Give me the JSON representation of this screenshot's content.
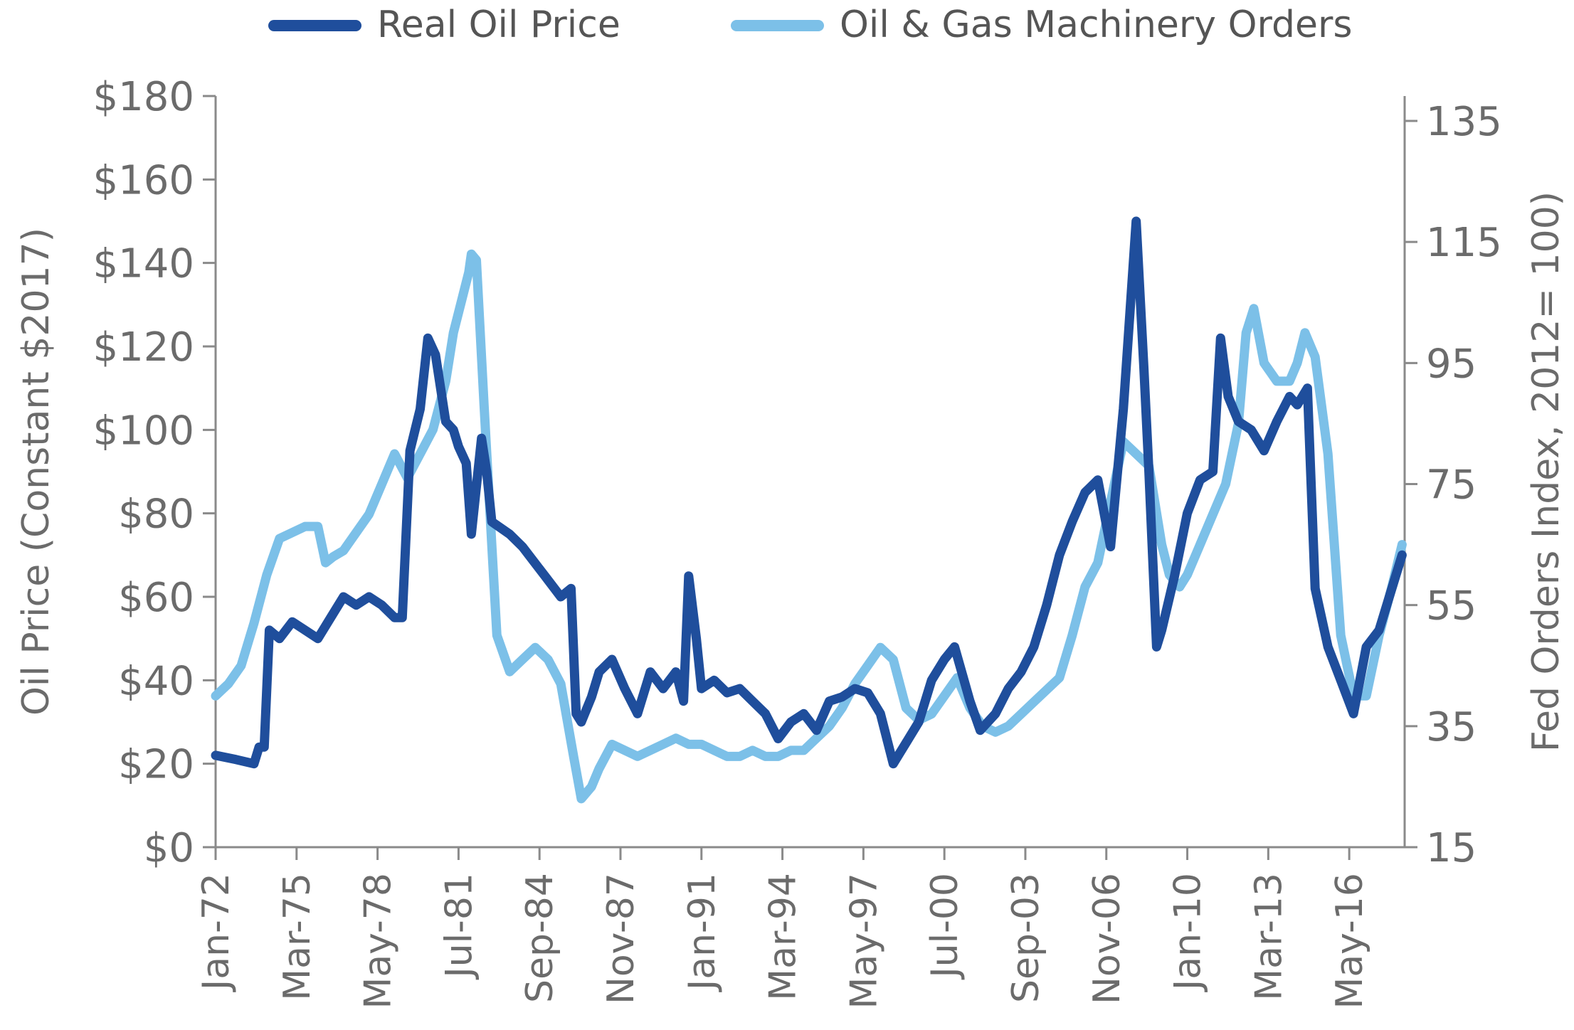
{
  "chart_data": {
    "type": "line",
    "legend": {
      "position": "top-center"
    },
    "grid": false,
    "x_tick_labels": [
      "Jan-72",
      "Mar-75",
      "May-78",
      "Jul-81",
      "Sep-84",
      "Nov-87",
      "Jan-91",
      "Mar-94",
      "May-97",
      "Jul-00",
      "Sep-03",
      "Nov-06",
      "Jan-10",
      "Mar-13",
      "May-16"
    ],
    "xlim": [
      1972.0,
      2018.5
    ],
    "y_left": {
      "label": "Oil Price (Constant $2017)",
      "ylim": [
        0,
        180
      ],
      "tick_labels": [
        "$0",
        "$20",
        "$40",
        "$60",
        "$80",
        "$100",
        "$120",
        "$140",
        "$160",
        "$180"
      ]
    },
    "y_right": {
      "label": "Fed Orders Index,  2012= 100)",
      "ylim": [
        15,
        140
      ],
      "tick_labels": [
        "15",
        "35",
        "55",
        "75",
        "95",
        "115",
        "135"
      ]
    },
    "series": [
      {
        "name": "Real Oil Price",
        "axis": "left",
        "color": "#1f4e9c",
        "x": [
          1972.0,
          1972.8,
          1973.5,
          1973.7,
          1973.9,
          1974.1,
          1974.5,
          1975.0,
          1975.5,
          1976.0,
          1976.5,
          1977.0,
          1977.5,
          1978.0,
          1978.5,
          1979.0,
          1979.3,
          1979.6,
          1980.0,
          1980.3,
          1980.6,
          1981.0,
          1981.3,
          1981.5,
          1981.8,
          1982.0,
          1982.4,
          1982.6,
          1982.8,
          1983.5,
          1984.0,
          1984.5,
          1985.0,
          1985.5,
          1985.9,
          1986.1,
          1986.3,
          1986.7,
          1987.0,
          1987.5,
          1988.0,
          1988.5,
          1989.0,
          1989.5,
          1990.0,
          1990.3,
          1990.5,
          1990.8,
          1991.0,
          1991.5,
          1992.0,
          1992.5,
          1993.0,
          1993.5,
          1994.0,
          1994.5,
          1995.0,
          1995.5,
          1996.0,
          1996.5,
          1997.0,
          1997.5,
          1998.0,
          1998.5,
          1999.0,
          1999.5,
          2000.0,
          2000.5,
          2000.9,
          2001.5,
          2001.9,
          2002.5,
          2003.0,
          2003.5,
          2004.0,
          2004.5,
          2005.0,
          2005.5,
          2006.0,
          2006.5,
          2007.0,
          2007.5,
          2008.0,
          2008.3,
          2008.5,
          2008.8,
          2009.0,
          2009.5,
          2010.0,
          2010.5,
          2011.0,
          2011.3,
          2011.6,
          2012.0,
          2012.5,
          2013.0,
          2013.5,
          2014.0,
          2014.3,
          2014.7,
          2015.0,
          2015.5,
          2016.0,
          2016.5,
          2017.0,
          2017.5,
          2018.0,
          2018.4
        ],
        "values": [
          22,
          21,
          20,
          24,
          24,
          52,
          50,
          54,
          52,
          50,
          55,
          60,
          58,
          60,
          58,
          55,
          55,
          95,
          105,
          122,
          118,
          102,
          100,
          96,
          92,
          75,
          98,
          90,
          78,
          75,
          72,
          68,
          64,
          60,
          62,
          32,
          30,
          36,
          42,
          45,
          38,
          32,
          42,
          38,
          42,
          35,
          65,
          50,
          38,
          40,
          37,
          38,
          35,
          32,
          26,
          30,
          32,
          28,
          35,
          36,
          38,
          37,
          32,
          20,
          25,
          30,
          40,
          45,
          48,
          35,
          28,
          32,
          38,
          42,
          48,
          58,
          70,
          78,
          85,
          88,
          72,
          105,
          150,
          115,
          90,
          48,
          52,
          65,
          80,
          88,
          90,
          122,
          108,
          102,
          100,
          95,
          102,
          108,
          106,
          110,
          62,
          48,
          40,
          32,
          48,
          52,
          62,
          70
        ]
      },
      {
        "name": "Oil & Gas Machinery Orders",
        "axis": "right",
        "color": "#7cc0e8",
        "x": [
          1972.0,
          1972.5,
          1973.0,
          1973.5,
          1974.0,
          1974.5,
          1975.0,
          1975.5,
          1976.0,
          1976.3,
          1976.6,
          1977.0,
          1977.5,
          1978.0,
          1978.5,
          1979.0,
          1979.5,
          1980.0,
          1980.5,
          1981.0,
          1981.3,
          1981.6,
          1981.9,
          1982.0,
          1982.2,
          1982.5,
          1982.8,
          1983.0,
          1983.5,
          1984.0,
          1984.5,
          1985.0,
          1985.5,
          1986.0,
          1986.3,
          1986.7,
          1987.0,
          1987.5,
          1988.0,
          1988.5,
          1989.0,
          1989.5,
          1990.0,
          1990.5,
          1991.0,
          1991.5,
          1992.0,
          1992.5,
          1993.0,
          1993.5,
          1994.0,
          1994.5,
          1995.0,
          1995.5,
          1996.0,
          1996.5,
          1997.0,
          1997.5,
          1998.0,
          1998.5,
          1999.0,
          1999.5,
          2000.0,
          2000.5,
          2001.0,
          2001.5,
          2002.0,
          2002.5,
          2003.0,
          2003.5,
          2004.0,
          2004.5,
          2005.0,
          2005.5,
          2006.0,
          2006.5,
          2007.0,
          2007.5,
          2008.0,
          2008.5,
          2009.0,
          2009.3,
          2009.7,
          2010.0,
          2010.5,
          2011.0,
          2011.5,
          2012.0,
          2012.3,
          2012.6,
          2013.0,
          2013.5,
          2014.0,
          2014.3,
          2014.6,
          2015.0,
          2015.5,
          2016.0,
          2016.5,
          2017.0,
          2017.5,
          2018.0,
          2018.4
        ],
        "values": [
          40,
          42,
          45,
          52,
          60,
          66,
          67,
          68,
          68,
          62,
          63,
          64,
          67,
          70,
          75,
          80,
          76,
          80,
          84,
          92,
          100,
          105,
          110,
          113,
          112,
          88,
          65,
          50,
          44,
          46,
          48,
          46,
          42,
          30,
          23,
          25,
          28,
          32,
          31,
          30,
          31,
          32,
          33,
          32,
          32,
          31,
          30,
          30,
          31,
          30,
          30,
          31,
          31,
          33,
          35,
          38,
          42,
          45,
          48,
          46,
          38,
          36,
          37,
          40,
          43,
          38,
          35,
          34,
          35,
          37,
          39,
          41,
          43,
          50,
          58,
          62,
          72,
          82,
          80,
          78,
          65,
          60,
          58,
          60,
          65,
          70,
          75,
          85,
          100,
          104,
          95,
          92,
          92,
          95,
          100,
          96,
          80,
          50,
          40,
          40,
          50,
          58,
          65
        ]
      }
    ]
  }
}
